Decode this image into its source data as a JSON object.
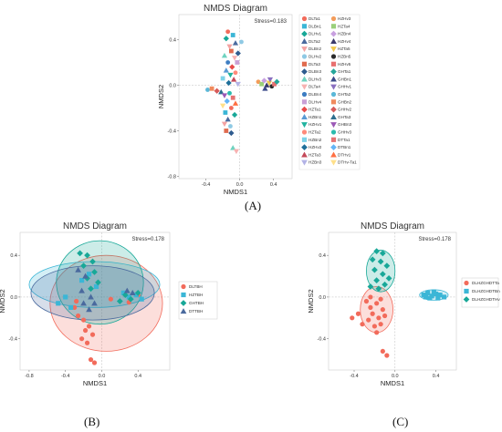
{
  "panel_labels": [
    "(A)",
    "(B)",
    "(C)"
  ],
  "chart_data": [
    {
      "type": "scatter",
      "title": "NMDS Diagram",
      "xlabel": "NMDS1",
      "ylabel": "NMDS2",
      "stress": "Stress=0.183",
      "xticks": [
        "-0.4",
        "0.0",
        "0.4"
      ],
      "yticks": [
        "0.4",
        "0.0",
        "-0.4",
        "-0.8"
      ],
      "xlim": [
        -0.72,
        0.62
      ],
      "ylim": [
        -0.82,
        0.62
      ],
      "legend_position": "right",
      "legend": [
        "DLTa1",
        "DLBn1",
        "DLHv1",
        "DLTa2",
        "DLBn2",
        "DLHv2",
        "DLTa3",
        "DLBn3",
        "DLHv3",
        "DLTa4",
        "DLBn4",
        "DLHv4",
        "HZTa1",
        "HZBn1",
        "HZHv1",
        "HZTa2",
        "HZBn2",
        "HZHv2",
        "HZTa3",
        "HZBn3",
        "HZHv3",
        "HZTa4",
        "HZBn4",
        "HZHv4",
        "HZTa5",
        "HZBn5",
        "HZHv5",
        "GHTa1",
        "GHBn1",
        "GHHv1",
        "GHTa2",
        "GHBn2",
        "GHHv2",
        "GHTa3",
        "GHBn3",
        "GHHv3",
        "DTTa1",
        "DTBn1",
        "DTHv1",
        "DTHv-Ta1"
      ],
      "points": [
        [
          -0.14,
          0.47
        ],
        [
          -0.08,
          0.44
        ],
        [
          -0.16,
          0.41
        ],
        [
          -0.05,
          0.37
        ],
        [
          -0.12,
          0.34
        ],
        [
          0.02,
          0.38
        ],
        [
          -0.1,
          0.3
        ],
        [
          -0.02,
          0.28
        ],
        [
          -0.18,
          0.26
        ],
        [
          -0.06,
          0.24
        ],
        [
          -0.14,
          0.2
        ],
        [
          -0.03,
          0.2
        ],
        [
          -0.09,
          0.16
        ],
        [
          -0.16,
          0.13
        ],
        [
          -0.11,
          0.09
        ],
        [
          -0.05,
          0.11
        ],
        [
          -0.2,
          0.06
        ],
        [
          -0.13,
          0.02
        ],
        [
          -0.07,
          0.05
        ],
        [
          -0.02,
          0.01
        ],
        [
          0.22,
          0.03
        ],
        [
          0.26,
          0.01
        ],
        [
          0.29,
          0.04
        ],
        [
          0.32,
          0.0
        ],
        [
          0.35,
          0.02
        ],
        [
          0.38,
          -0.01
        ],
        [
          0.41,
          0.01
        ],
        [
          0.44,
          0.03
        ],
        [
          0.3,
          -0.03
        ],
        [
          0.36,
          0.05
        ],
        [
          -0.38,
          -0.04
        ],
        [
          -0.33,
          -0.03
        ],
        [
          -0.27,
          -0.05
        ],
        [
          -0.22,
          -0.06
        ],
        [
          -0.18,
          -0.09
        ],
        [
          -0.12,
          -0.07
        ],
        [
          -0.08,
          -0.11
        ],
        [
          -0.15,
          -0.14
        ],
        [
          -0.05,
          -0.16
        ],
        [
          -0.2,
          -0.18
        ],
        [
          -0.1,
          -0.2
        ],
        [
          -0.17,
          -0.24
        ],
        [
          -0.06,
          -0.26
        ],
        [
          -0.14,
          -0.3
        ],
        [
          -0.18,
          -0.34
        ],
        [
          -0.11,
          -0.36
        ],
        [
          -0.16,
          -0.4
        ],
        [
          -0.1,
          -0.42
        ],
        [
          -0.08,
          -0.55
        ],
        [
          -0.04,
          -0.58
        ]
      ]
    },
    {
      "type": "scatter",
      "title": "NMDS Diagram",
      "xlabel": "NMDS1",
      "ylabel": "NMDS2",
      "stress": "Stress=0.178",
      "xticks": [
        "-0.8",
        "-0.4",
        "0.0",
        "0.4"
      ],
      "yticks": [
        "0.4",
        "0.0",
        "-0.4"
      ],
      "xlim": [
        -0.9,
        0.75
      ],
      "ylim": [
        -0.7,
        0.62
      ],
      "legend_position": "right",
      "series": [
        {
          "name": "DLTBH",
          "color": "#f26b5b",
          "marker": "circle",
          "ellipse": {
            "cx": 0.05,
            "cy": -0.06,
            "rx": 0.62,
            "ry": 0.46
          },
          "points": [
            [
              -0.3,
              -0.1
            ],
            [
              -0.26,
              -0.18
            ],
            [
              -0.2,
              -0.22
            ],
            [
              -0.14,
              -0.28
            ],
            [
              -0.18,
              -0.32
            ],
            [
              -0.1,
              -0.36
            ],
            [
              -0.22,
              -0.4
            ],
            [
              -0.16,
              -0.44
            ],
            [
              -0.28,
              -0.04
            ],
            [
              -0.12,
              -0.6
            ],
            [
              -0.08,
              -0.63
            ],
            [
              0.1,
              -0.02
            ],
            [
              0.3,
              -0.05
            ],
            [
              0.4,
              0.02
            ]
          ]
        },
        {
          "name": "HZTBH",
          "color": "#3bb6d6",
          "marker": "square",
          "ellipse": {
            "cx": -0.08,
            "cy": 0.12,
            "rx": 0.72,
            "ry": 0.22
          },
          "points": [
            [
              -0.4,
              0.0
            ],
            [
              -0.48,
              -0.06
            ],
            [
              -0.34,
              -0.1
            ],
            [
              -0.22,
              0.16
            ],
            [
              -0.14,
              0.22
            ],
            [
              -0.06,
              0.1
            ],
            [
              0.24,
              0.04
            ],
            [
              0.3,
              0.0
            ],
            [
              0.38,
              0.02
            ],
            [
              0.44,
              -0.02
            ]
          ]
        },
        {
          "name": "GHTBH",
          "color": "#18a898",
          "marker": "diamond",
          "ellipse": {
            "cx": -0.02,
            "cy": 0.14,
            "rx": 0.48,
            "ry": 0.4
          },
          "points": [
            [
              -0.24,
              0.42
            ],
            [
              -0.16,
              0.4
            ],
            [
              -0.1,
              0.34
            ],
            [
              -0.2,
              0.3
            ],
            [
              -0.08,
              0.24
            ],
            [
              -0.16,
              0.18
            ],
            [
              -0.04,
              0.14
            ],
            [
              -0.12,
              0.08
            ],
            [
              0.26,
              0.02
            ],
            [
              0.32,
              -0.02
            ],
            [
              0.4,
              0.04
            ],
            [
              0.2,
              -0.04
            ]
          ]
        },
        {
          "name": "DTTBH",
          "color": "#4a6a9e",
          "marker": "triangle",
          "ellipse": {
            "cx": -0.1,
            "cy": 0.04,
            "rx": 0.68,
            "ry": 0.26
          },
          "points": [
            [
              -0.26,
              0.26
            ],
            [
              -0.18,
              0.2
            ],
            [
              -0.22,
              0.06
            ],
            [
              -0.12,
              0.0
            ],
            [
              -0.2,
              -0.06
            ],
            [
              -0.14,
              -0.12
            ],
            [
              -0.08,
              -0.06
            ],
            [
              0.28,
              0.06
            ],
            [
              0.34,
              0.04
            ]
          ]
        }
      ]
    },
    {
      "type": "scatter",
      "title": "NMDS Diagram",
      "xlabel": "NMDS1",
      "ylabel": "NMDS2",
      "stress": "Stress=0.178",
      "xticks": [
        "-0.4",
        "0.0",
        "0.4"
      ],
      "yticks": [
        "0.4",
        "0.0",
        "-0.4"
      ],
      "xlim": [
        -0.65,
        0.6
      ],
      "ylim": [
        -0.7,
        0.62
      ],
      "legend_position": "right",
      "series": [
        {
          "name": "DLHZGHDTTa",
          "color": "#f26b5b",
          "marker": "circle",
          "ellipse": {
            "cx": -0.18,
            "cy": -0.12,
            "rx": 0.16,
            "ry": 0.22
          },
          "points": [
            [
              -0.28,
              -0.04
            ],
            [
              -0.24,
              -0.1
            ],
            [
              -0.18,
              -0.06
            ],
            [
              -0.12,
              -0.12
            ],
            [
              -0.22,
              -0.16
            ],
            [
              -0.16,
              -0.2
            ],
            [
              -0.1,
              -0.18
            ],
            [
              -0.26,
              -0.22
            ],
            [
              -0.2,
              -0.28
            ],
            [
              -0.14,
              -0.26
            ],
            [
              -0.18,
              -0.34
            ],
            [
              -0.36,
              -0.16
            ],
            [
              -0.42,
              -0.2
            ],
            [
              -0.32,
              -0.26
            ],
            [
              -0.12,
              -0.52
            ],
            [
              -0.08,
              -0.56
            ],
            [
              -0.24,
              0.0
            ],
            [
              -0.14,
              -0.02
            ]
          ]
        },
        {
          "name": "DLHZGHDTBn",
          "color": "#3bb6d6",
          "marker": "square",
          "ellipse": {
            "cx": 0.38,
            "cy": 0.02,
            "rx": 0.14,
            "ry": 0.05
          },
          "points": [
            [
              0.28,
              0.02
            ],
            [
              0.32,
              0.04
            ],
            [
              0.36,
              0.01
            ],
            [
              0.4,
              0.03
            ],
            [
              0.44,
              0.02
            ],
            [
              0.48,
              0.0
            ],
            [
              0.34,
              -0.01
            ],
            [
              0.42,
              -0.01
            ],
            [
              0.38,
              0.05
            ],
            [
              0.3,
              0.0
            ]
          ]
        },
        {
          "name": "DLHZGHDTHv",
          "color": "#18a898",
          "marker": "diamond",
          "ellipse": {
            "cx": -0.14,
            "cy": 0.25,
            "rx": 0.14,
            "ry": 0.2
          },
          "points": [
            [
              -0.18,
              0.44
            ],
            [
              -0.12,
              0.42
            ],
            [
              -0.22,
              0.36
            ],
            [
              -0.14,
              0.34
            ],
            [
              -0.08,
              0.3
            ],
            [
              -0.2,
              0.26
            ],
            [
              -0.12,
              0.22
            ],
            [
              -0.06,
              0.18
            ],
            [
              -0.18,
              0.16
            ],
            [
              -0.1,
              0.12
            ],
            [
              -0.24,
              0.1
            ],
            [
              -0.16,
              0.08
            ]
          ]
        }
      ]
    }
  ]
}
